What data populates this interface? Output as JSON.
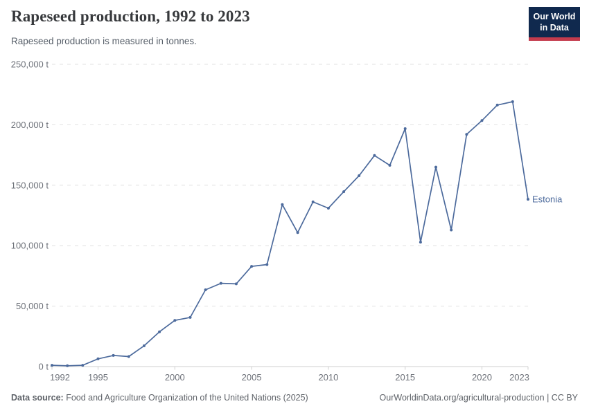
{
  "header": {
    "title": "Rapeseed production, 1992 to 2023",
    "subtitle": "Rapeseed production is measured in tonnes."
  },
  "logo": {
    "line1": "Our World",
    "line2": "in Data",
    "background_color": "#10294e",
    "accent_color": "#c43b4d"
  },
  "chart_data": {
    "type": "line",
    "title": "Rapeseed production, 1992 to 2023",
    "unit": "t",
    "x": [
      1992,
      1993,
      1994,
      1995,
      1996,
      1997,
      1998,
      1999,
      2000,
      2001,
      2002,
      2003,
      2004,
      2005,
      2006,
      2007,
      2008,
      2009,
      2010,
      2011,
      2012,
      2013,
      2014,
      2015,
      2016,
      2017,
      2018,
      2019,
      2020,
      2021,
      2022,
      2023
    ],
    "series": [
      {
        "name": "Estonia",
        "color": "#4c6a9c",
        "values": [
          1100,
          700,
          1100,
          6400,
          9200,
          8300,
          17200,
          28800,
          38200,
          40700,
          63500,
          68900,
          68400,
          82900,
          84400,
          134000,
          110800,
          136200,
          131000,
          144700,
          157900,
          174600,
          166500,
          196800,
          102900,
          165000,
          113000,
          192100,
          203500,
          216300,
          219100,
          138400
        ]
      }
    ],
    "x_ticks": [
      1992,
      1995,
      2000,
      2005,
      2010,
      2015,
      2020,
      2023
    ],
    "y_ticks": [
      0,
      50000,
      100000,
      150000,
      200000,
      250000
    ],
    "y_tick_labels": [
      "0 t",
      "50,000 t",
      "100,000 t",
      "150,000 t",
      "200,000 t",
      "250,000 t"
    ],
    "ylim": [
      0,
      250000
    ],
    "xlim": [
      1992,
      2023
    ],
    "grid": "horizontal-dashed",
    "grid_color": "#e0e0e0",
    "axis_color": "#cfcfcf",
    "legend_position": "end-of-line-label"
  },
  "footer": {
    "datasource_label": "Data source:",
    "datasource_value": " Food and Agriculture Organization of the United Nations (2025)",
    "credit": "OurWorldinData.org/agricultural-production | CC BY"
  }
}
